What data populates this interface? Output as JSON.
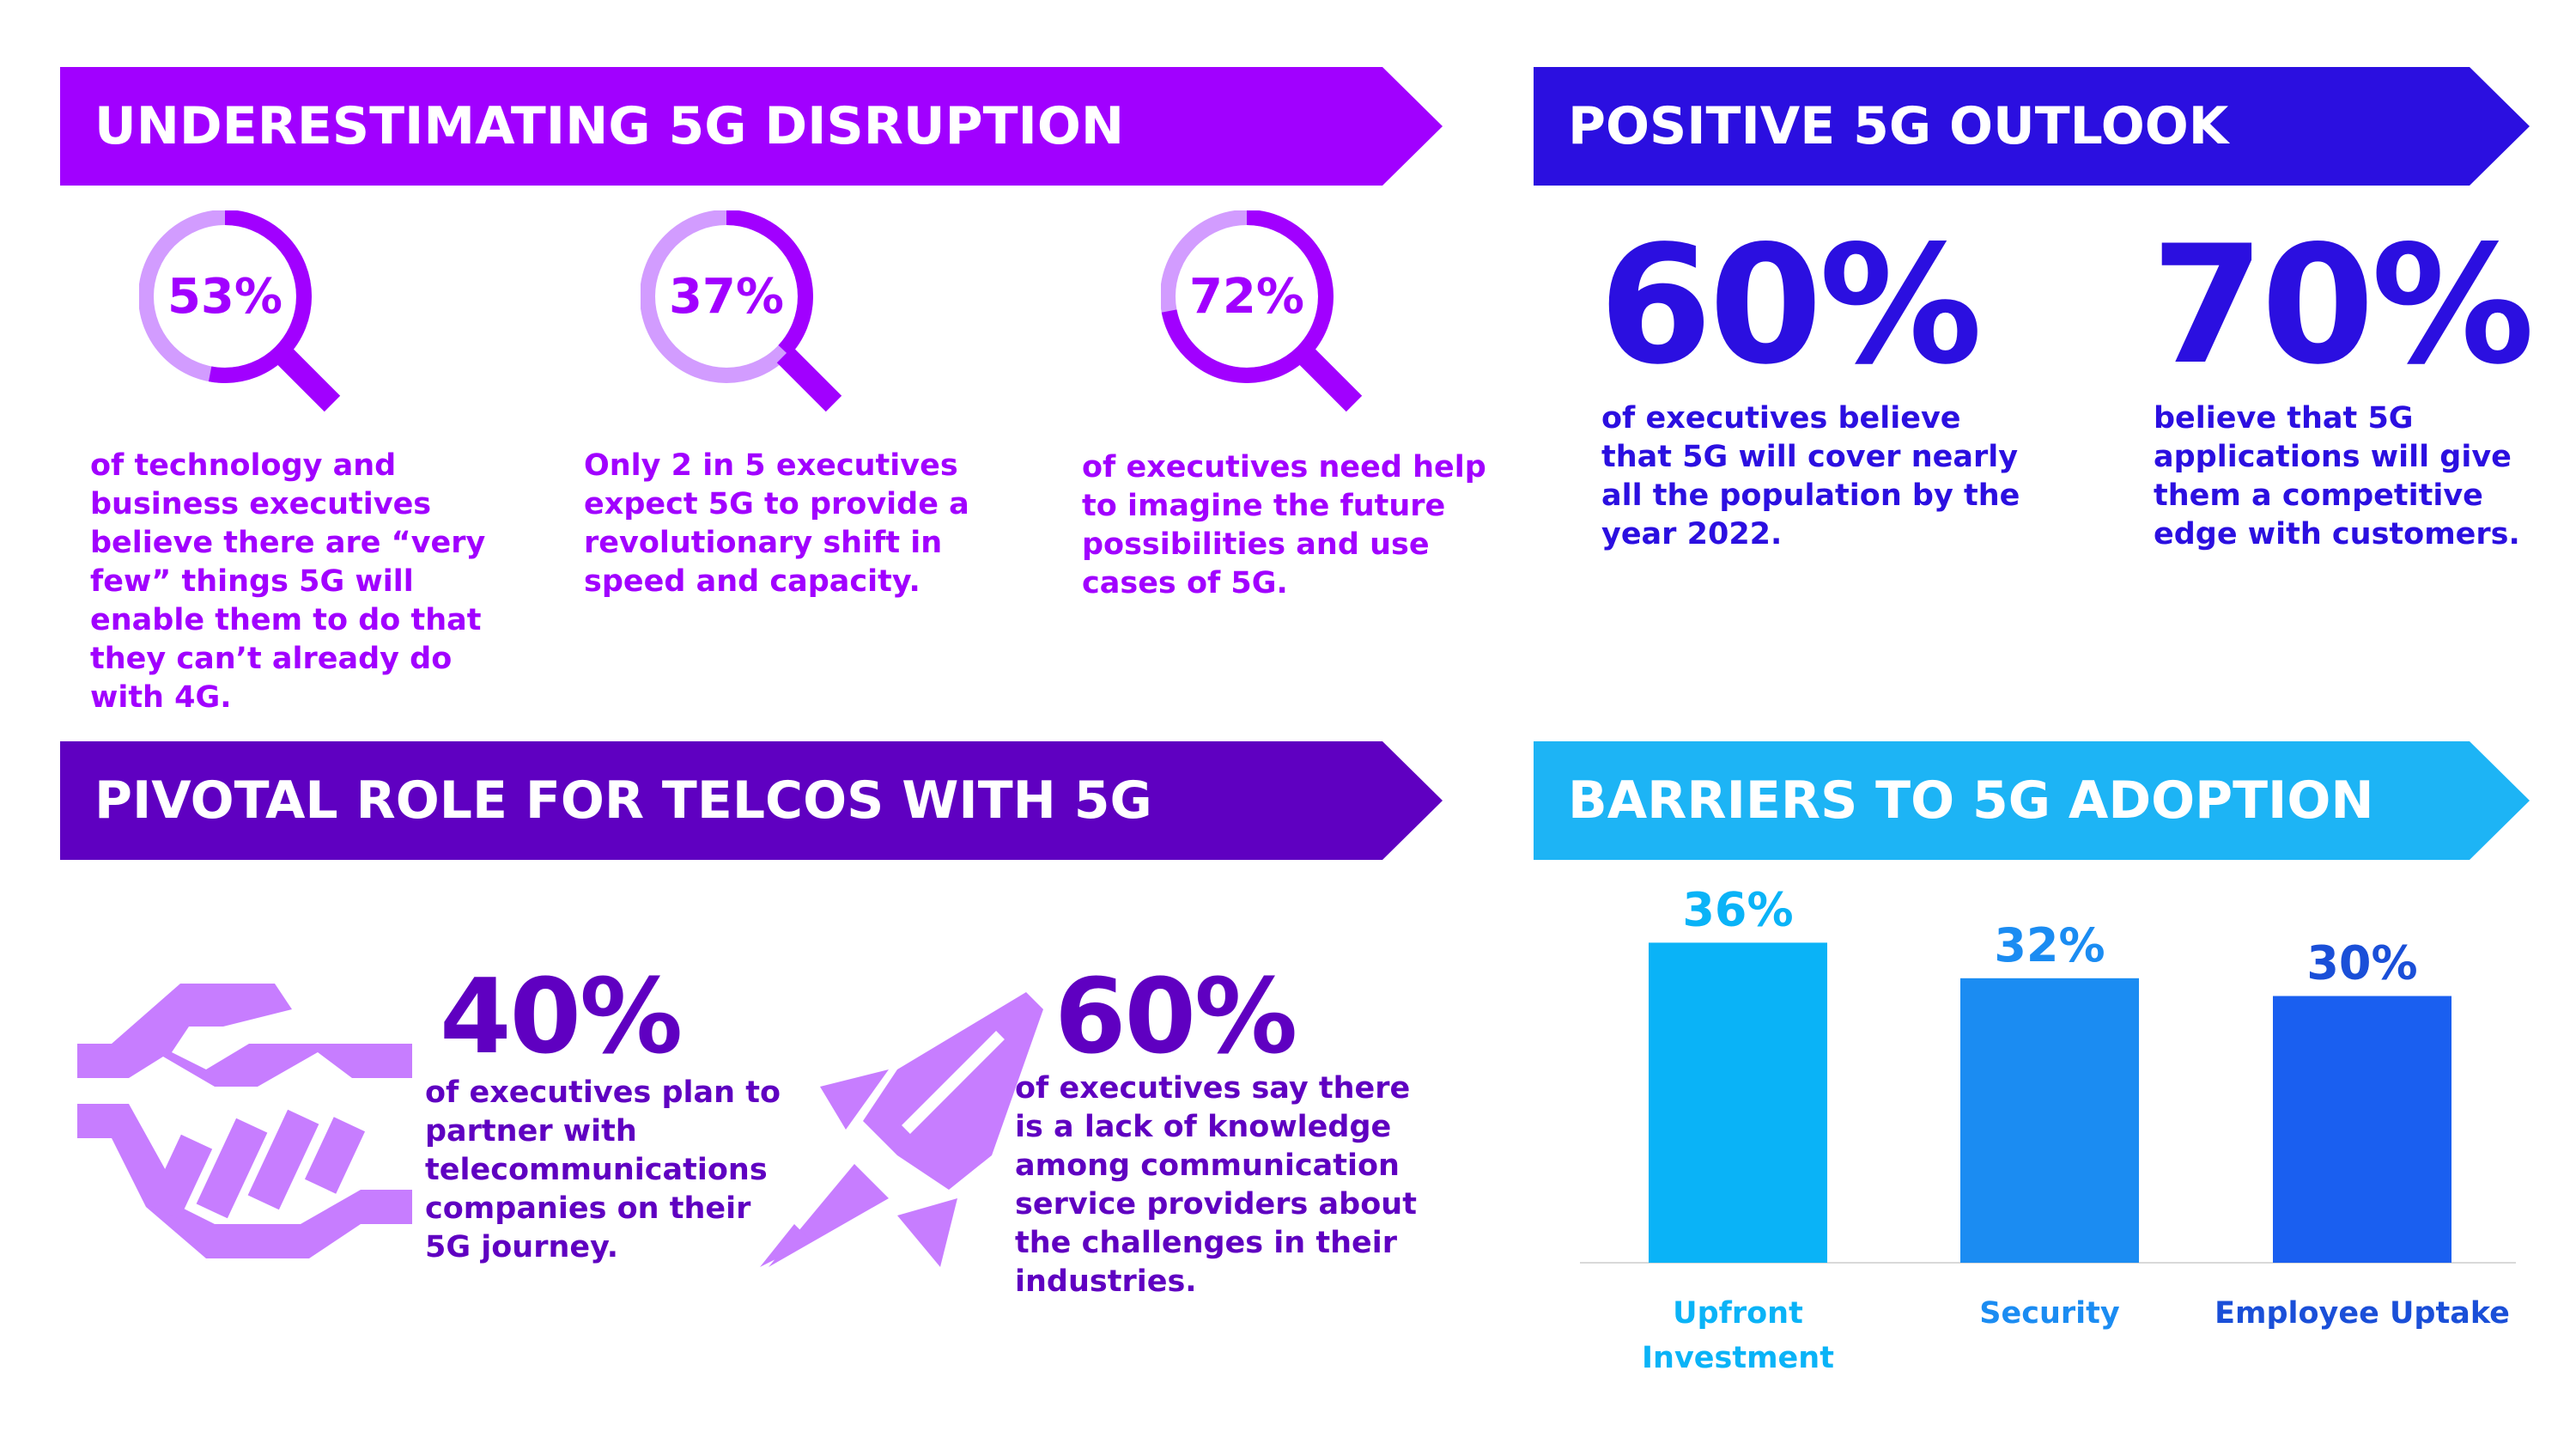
{
  "sections": {
    "disruption": {
      "title": "UNDERESTIMATING 5G DISRUPTION",
      "color": "#a100ff",
      "items": [
        {
          "pct": "53%",
          "value": 53,
          "text": [
            "of technology and",
            "business executives",
            "believe there are “very",
            "few” things 5G will",
            "enable them to do that",
            "they can’t already do",
            "with 4G."
          ]
        },
        {
          "pct": "37%",
          "value": 37,
          "text": [
            "Only 2 in 5 executives",
            "expect 5G to provide a",
            "revolutionary shift in",
            "speed and capacity."
          ]
        },
        {
          "pct": "72%",
          "value": 72,
          "text": [
            "of executives need help",
            "to imagine the future",
            "possibilities and use",
            "cases of 5G."
          ]
        }
      ]
    },
    "outlook": {
      "title": "POSITIVE 5G OUTLOOK",
      "color": "#2b0fe0",
      "items": [
        {
          "pct": "60%",
          "text": [
            "of executives believe",
            "that 5G will cover nearly",
            "all the population by the",
            "year 2022."
          ]
        },
        {
          "pct": "70%",
          "text": [
            "believe that 5G",
            "applications will give",
            "them a competitive",
            "edge with customers."
          ]
        }
      ]
    },
    "telcos": {
      "title": "PIVOTAL ROLE FOR TELCOS WITH 5G",
      "color": "#5f00c1",
      "items": [
        {
          "pct": "40%",
          "icon": "handshake-icon",
          "text": [
            "of executives plan to",
            "partner with",
            "telecommunications",
            "companies on their",
            "5G journey."
          ]
        },
        {
          "pct": "60%",
          "icon": "rocket-icon",
          "text": [
            "of executives say there",
            "is a lack of knowledge",
            "among communication",
            "service providers about",
            "the challenges in their",
            "industries."
          ]
        }
      ]
    },
    "barriers": {
      "title": "BARRIERS TO 5G ADOPTION",
      "color": "#1db4f5"
    }
  },
  "chart_data": {
    "type": "bar",
    "title": "BARRIERS TO 5G ADOPTION",
    "categories": [
      "Upfront Investment",
      "Security",
      "Employee Uptake"
    ],
    "category_lines": [
      [
        "Upfront",
        "Investment"
      ],
      [
        "Security"
      ],
      [
        "Employee Uptake"
      ]
    ],
    "values": [
      36,
      32,
      30
    ],
    "data_labels": [
      "36%",
      "32%",
      "30%"
    ],
    "bar_colors": [
      "#0ab3f7",
      "#1b8cf2",
      "#1a5ff0"
    ],
    "label_colors": [
      "#0ab3f7",
      "#1b8cf2",
      "#1a4fd8"
    ],
    "ylim": [
      0,
      40
    ],
    "grid": false,
    "legend": "none"
  }
}
